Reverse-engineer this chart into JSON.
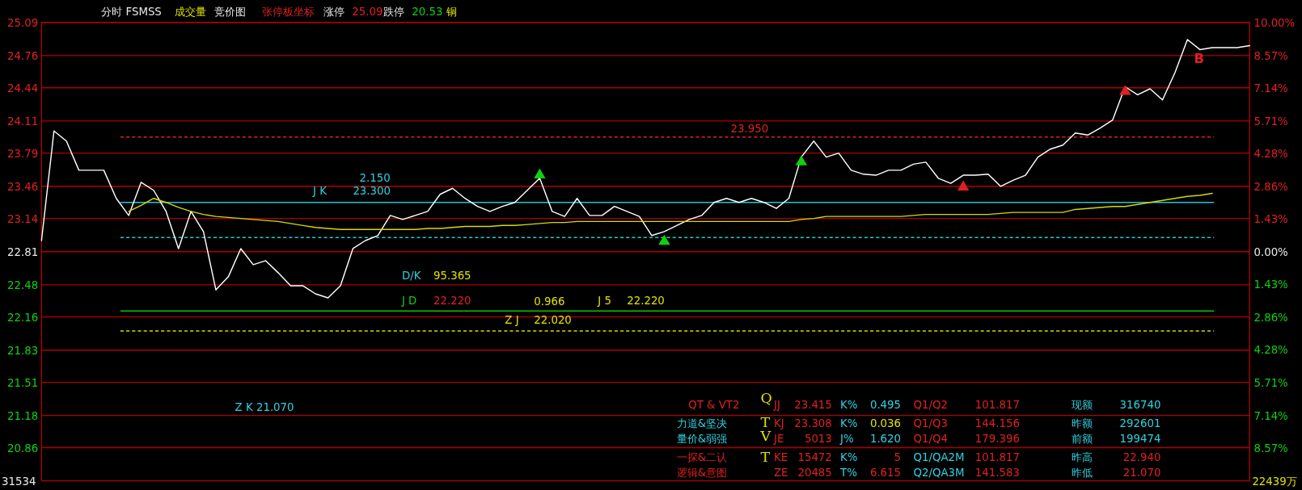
{
  "chart_data": {
    "type": "line",
    "categories": [
      null,
      null,
      null,
      null,
      null,
      null,
      null,
      null,
      null,
      null,
      null,
      null,
      null,
      null,
      null,
      null,
      null,
      null,
      null,
      null,
      null,
      null,
      null,
      null,
      null,
      null,
      null,
      null,
      null,
      null,
      null,
      null,
      null,
      null,
      null,
      null,
      null,
      null,
      null,
      null,
      null,
      null,
      null,
      null,
      null,
      null,
      null,
      null,
      null,
      null,
      null,
      null,
      null,
      null,
      null,
      null,
      null,
      null,
      null,
      null,
      null,
      null,
      null,
      null,
      null,
      null,
      null,
      null,
      null,
      null,
      null,
      null,
      null,
      null,
      null,
      null,
      null,
      null,
      null,
      null,
      null,
      null,
      null,
      null,
      null,
      null,
      null,
      null,
      null,
      null,
      null,
      null,
      null,
      null,
      null,
      null,
      null,
      null
    ],
    "series": [
      {
        "color": "#ffffff",
        "values": [
          22.92,
          24.01,
          23.91,
          23.62,
          23.62,
          23.62,
          23.34,
          23.17,
          23.5,
          23.42,
          23.21,
          22.84,
          23.21,
          23.01,
          22.43,
          22.56,
          22.84,
          22.68,
          22.72,
          22.6,
          22.47,
          22.47,
          22.39,
          22.35,
          22.47,
          22.84,
          22.92,
          22.97,
          23.17,
          23.13,
          23.17,
          23.21,
          23.38,
          23.44,
          23.34,
          23.26,
          23.21,
          23.26,
          23.3,
          23.42,
          23.54,
          23.21,
          23.16,
          23.34,
          23.17,
          23.17,
          23.26,
          23.21,
          23.16,
          22.97,
          23.01,
          23.07,
          23.13,
          23.17,
          23.3,
          23.34,
          23.3,
          23.34,
          23.3,
          23.24,
          23.34,
          23.75,
          23.91,
          23.75,
          23.79,
          23.62,
          23.58,
          23.57,
          23.62,
          23.62,
          23.68,
          23.7,
          23.54,
          23.49,
          23.57,
          23.57,
          23.58,
          23.46,
          23.52,
          23.57,
          23.75,
          23.83,
          23.87,
          23.99,
          23.97,
          24.04,
          24.12,
          24.45,
          24.37,
          24.43,
          24.32,
          24.59,
          24.92,
          24.82,
          24.84,
          24.84,
          24.84,
          24.86
        ]
      },
      {
        "color": "#d8d800",
        "values": [
          null,
          null,
          null,
          null,
          null,
          null,
          null,
          23.21,
          23.27,
          23.34,
          23.3,
          23.25,
          23.21,
          23.18,
          23.16,
          23.15,
          23.14,
          23.13,
          23.12,
          23.11,
          23.09,
          23.07,
          23.05,
          23.04,
          23.03,
          23.03,
          23.03,
          23.03,
          23.03,
          23.03,
          23.03,
          23.04,
          23.04,
          23.05,
          23.06,
          23.06,
          23.06,
          23.07,
          23.07,
          23.08,
          23.09,
          23.1,
          23.1,
          23.11,
          23.11,
          23.11,
          23.11,
          23.11,
          23.11,
          23.11,
          23.11,
          23.11,
          23.11,
          23.11,
          23.11,
          23.11,
          23.11,
          23.11,
          23.11,
          23.11,
          23.11,
          23.13,
          23.14,
          23.16,
          23.16,
          23.16,
          23.16,
          23.16,
          23.16,
          23.16,
          23.17,
          23.18,
          23.18,
          23.18,
          23.18,
          23.18,
          23.18,
          23.19,
          23.2,
          23.2,
          23.2,
          23.2,
          23.2,
          23.23,
          23.24,
          23.25,
          23.26,
          23.26,
          23.28,
          23.3,
          23.32,
          23.34,
          23.36,
          23.37,
          23.39,
          null,
          null,
          null
        ]
      },
      {
        "type": "scatter",
        "marker": "triangle",
        "color": "#10d010",
        "values": [
          null,
          null,
          null,
          null,
          null,
          null,
          null,
          null,
          null,
          null,
          null,
          null,
          null,
          null,
          null,
          null,
          null,
          null,
          null,
          null,
          null,
          null,
          null,
          null,
          null,
          null,
          null,
          null,
          null,
          null,
          null,
          null,
          null,
          null,
          null,
          null,
          null,
          null,
          null,
          null,
          23.58,
          null,
          null,
          null,
          null,
          null,
          null,
          null,
          null,
          null,
          22.92,
          null,
          null,
          null,
          null,
          null,
          null,
          null,
          null,
          null,
          null,
          23.71,
          null,
          null,
          null,
          null,
          null,
          null,
          null,
          null,
          null,
          null,
          null,
          null,
          null,
          null,
          null,
          null,
          null,
          null,
          null,
          null,
          null,
          null,
          null,
          null,
          null,
          null,
          null,
          null,
          null,
          null,
          null,
          null,
          null,
          null,
          null,
          null
        ]
      },
      {
        "type": "scatter",
        "marker": "triangle",
        "color": "#e02020",
        "values": [
          null,
          null,
          null,
          null,
          null,
          null,
          null,
          null,
          null,
          null,
          null,
          null,
          null,
          null,
          null,
          null,
          null,
          null,
          null,
          null,
          null,
          null,
          null,
          null,
          null,
          null,
          null,
          null,
          null,
          null,
          null,
          null,
          null,
          null,
          null,
          null,
          null,
          null,
          null,
          null,
          null,
          null,
          null,
          null,
          null,
          null,
          null,
          null,
          null,
          null,
          null,
          null,
          null,
          null,
          null,
          null,
          null,
          null,
          null,
          null,
          null,
          null,
          null,
          null,
          null,
          null,
          null,
          null,
          null,
          null,
          null,
          null,
          null,
          null,
          23.46,
          null,
          null,
          null,
          null,
          null,
          null,
          null,
          null,
          null,
          null,
          null,
          null,
          24.41,
          null,
          null,
          null,
          null,
          null,
          null,
          null,
          null,
          null,
          null
        ]
      }
    ],
    "ylim": [
      20.53,
      25.09
    ],
    "yticks": [
      25.09,
      24.76,
      24.44,
      24.11,
      23.79,
      23.46,
      23.14,
      22.81,
      22.48,
      22.16,
      21.83,
      21.51,
      21.18,
      20.86
    ],
    "y2lim": [
      -10,
      10
    ],
    "y2ticks": [
      {
        "value": 10,
        "label": "10.00%"
      },
      {
        "value": 8.57,
        "label": "8.57%"
      },
      {
        "value": 7.14,
        "label": "7.14%"
      },
      {
        "value": 5.71,
        "label": "5.71%"
      },
      {
        "value": 4.28,
        "label": "4.28%"
      },
      {
        "value": 2.86,
        "label": "2.86%"
      },
      {
        "value": 1.43,
        "label": "1.43%"
      },
      {
        "value": 0,
        "label": "0.00%"
      },
      {
        "value": -1.43,
        "label": "1.43%"
      },
      {
        "value": -2.86,
        "label": "2.86%"
      },
      {
        "value": -4.28,
        "label": "4.28%"
      },
      {
        "value": -5.71,
        "label": "5.71%"
      },
      {
        "value": -7.14,
        "label": "7.14%"
      },
      {
        "value": -8.57,
        "label": "8.57%"
      }
    ],
    "grid": "y",
    "ref_lines": [
      {
        "axis": "y",
        "value": 23.3,
        "color": "#20c8d8"
      },
      {
        "axis": "y",
        "value": 22.95,
        "color": "#20c8d8",
        "line_style": "dashed"
      },
      {
        "axis": "y",
        "value": 22.22,
        "color": "#10c010"
      },
      {
        "axis": "y",
        "value": 22.02,
        "color": "#d8d800",
        "line_style": "dashed"
      },
      {
        "axis": "y",
        "value": 23.95,
        "color": "#e02020",
        "line_style": "dashed"
      }
    ],
    "annotations": [
      "分时 FSMSS",
      "成交量",
      "竞价图",
      "张停板坐标",
      "涨停",
      "25.09",
      "跌停",
      "20.53",
      "铜",
      "2.150",
      "J K",
      "23.300",
      "23.950",
      "D/K",
      "95.365",
      "J D",
      "22.220",
      "0.966",
      "J 5",
      "22.220",
      "Z J",
      "22.020",
      "Z K 21.070",
      "B",
      "QT & VT2",
      "JJ",
      "23.415",
      "K%",
      "0.495",
      "Q1/Q2",
      "101.817",
      "现额",
      "316740",
      "力道&坚决",
      "KJ",
      "23.308",
      "K%",
      "0.036",
      "Q1/Q3",
      "144.156",
      "昨额",
      "292601",
      "量价&弱强",
      "JE",
      "5013",
      "J%",
      "1.620",
      "Q1/Q4",
      "179.396",
      "前额",
      "199474",
      "一探&二认",
      "KE",
      "15472",
      "K%",
      "5",
      "Q1/QA2M",
      "101.817",
      "昨高",
      "22.940",
      "逻辑&意图",
      "ZE",
      "20485",
      "T%",
      "6.615",
      "Q2/QA3M",
      "141.583",
      "昨低",
      "21.070",
      "Q",
      "T",
      "V",
      "T",
      "31534",
      "22439万"
    ]
  }
}
